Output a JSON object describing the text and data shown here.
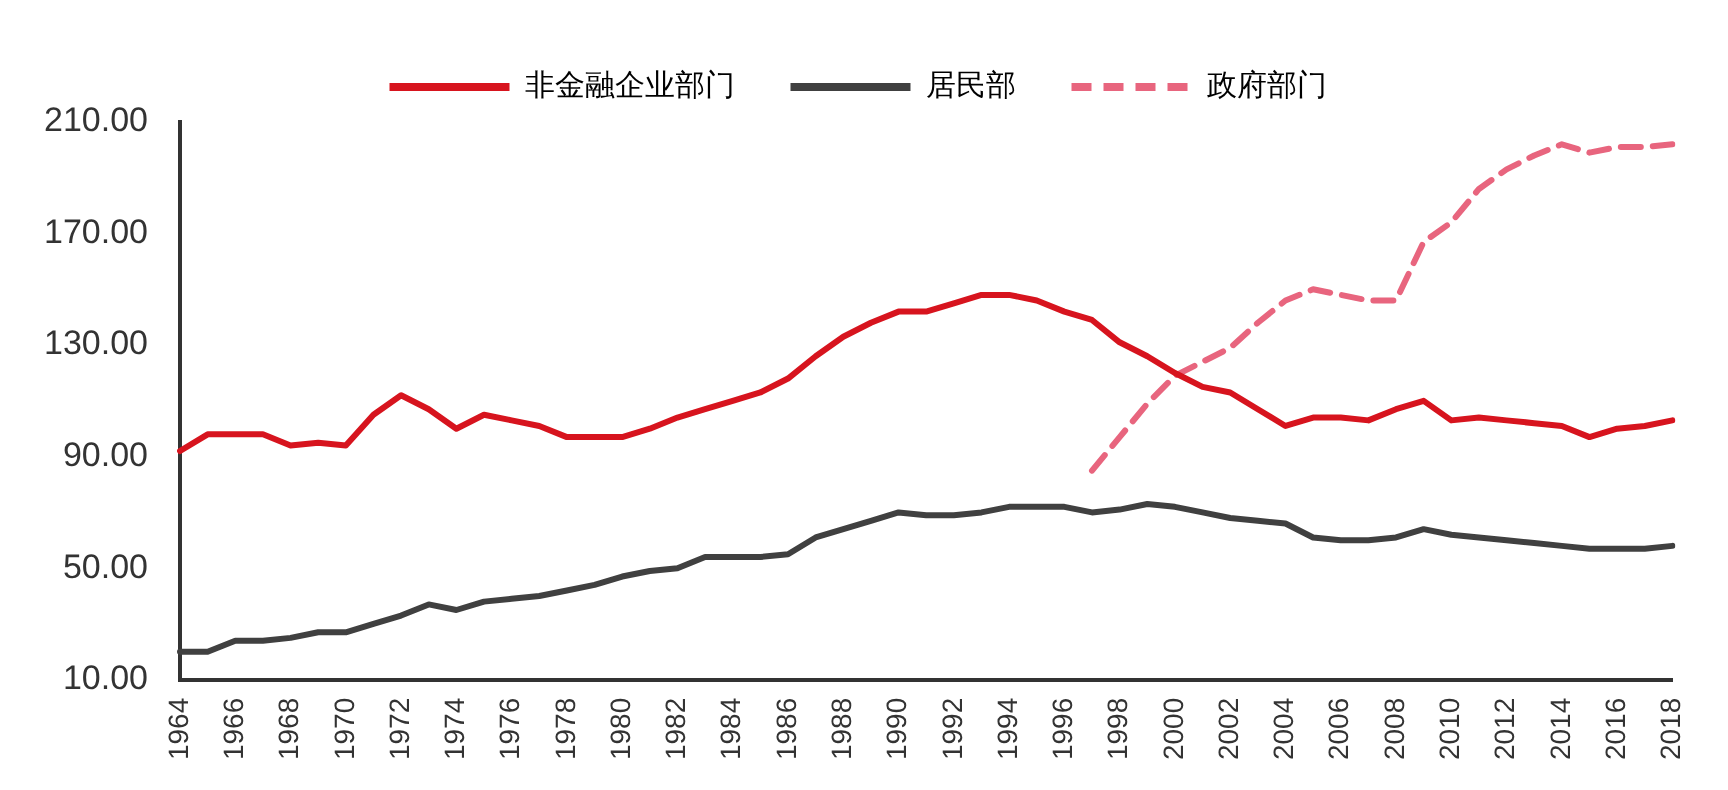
{
  "chart_data": {
    "type": "line",
    "categories": [
      "1964",
      null,
      "1966",
      null,
      "1968",
      null,
      "1970",
      null,
      "1972",
      null,
      "1974",
      null,
      "1976",
      null,
      "1978",
      null,
      "1980",
      null,
      "1982",
      null,
      "1984",
      null,
      "1986",
      null,
      "1988",
      null,
      "1990",
      null,
      "1992",
      null,
      "1994",
      null,
      "1996",
      null,
      "1998",
      null,
      "2000",
      null,
      "2002",
      null,
      "2004",
      null,
      "2006",
      null,
      "2008",
      null,
      "2010",
      null,
      "2012",
      null,
      "2014",
      null,
      "2016",
      null,
      "2018"
    ],
    "series": [
      {
        "name": "非金融企业部门",
        "color": "#d7141e",
        "line_style": "solid",
        "values": [
          92,
          98,
          98,
          98,
          94,
          95,
          94,
          105,
          112,
          107,
          100,
          105,
          103,
          101,
          97,
          97,
          97,
          100,
          104,
          107,
          110,
          113,
          118,
          126,
          133,
          138,
          142,
          142,
          145,
          148,
          148,
          146,
          142,
          139,
          131,
          126,
          120,
          115,
          113,
          107,
          101,
          104,
          104,
          103,
          107,
          110,
          103,
          104,
          103,
          102,
          101,
          97,
          100,
          101,
          103
        ]
      },
      {
        "name": "居民部",
        "color": "#404040",
        "line_style": "solid",
        "values": [
          20,
          20,
          24,
          24,
          25,
          27,
          27,
          30,
          33,
          37,
          35,
          38,
          39,
          40,
          42,
          44,
          47,
          49,
          50,
          54,
          54,
          54,
          55,
          61,
          64,
          67,
          70,
          69,
          69,
          70,
          72,
          72,
          72,
          70,
          71,
          73,
          72,
          70,
          68,
          67,
          66,
          61,
          60,
          60,
          61,
          64,
          62,
          61,
          60,
          59,
          58,
          57,
          57,
          57,
          58
        ]
      },
      {
        "name": "政府部门",
        "color": "#e8657e",
        "line_style": "dashed",
        "values": [
          null,
          null,
          null,
          null,
          null,
          null,
          null,
          null,
          null,
          null,
          null,
          null,
          null,
          null,
          null,
          null,
          null,
          null,
          null,
          null,
          null,
          null,
          null,
          null,
          null,
          null,
          null,
          null,
          null,
          null,
          null,
          null,
          null,
          85,
          97,
          109,
          119,
          124,
          129,
          138,
          146,
          150,
          148,
          146,
          146,
          167,
          174,
          186,
          193,
          198,
          202,
          199,
          201,
          201,
          202
        ]
      }
    ],
    "ylim": [
      10,
      210
    ],
    "yticks": [
      {
        "value": 10,
        "label": "10.00"
      },
      {
        "value": 50,
        "label": "50.00"
      },
      {
        "value": 90,
        "label": "90.00"
      },
      {
        "value": 130,
        "label": "130.00"
      },
      {
        "value": 170,
        "label": "170.00"
      },
      {
        "value": 210,
        "label": "210.00"
      }
    ],
    "legend": "top",
    "marker": "none"
  }
}
